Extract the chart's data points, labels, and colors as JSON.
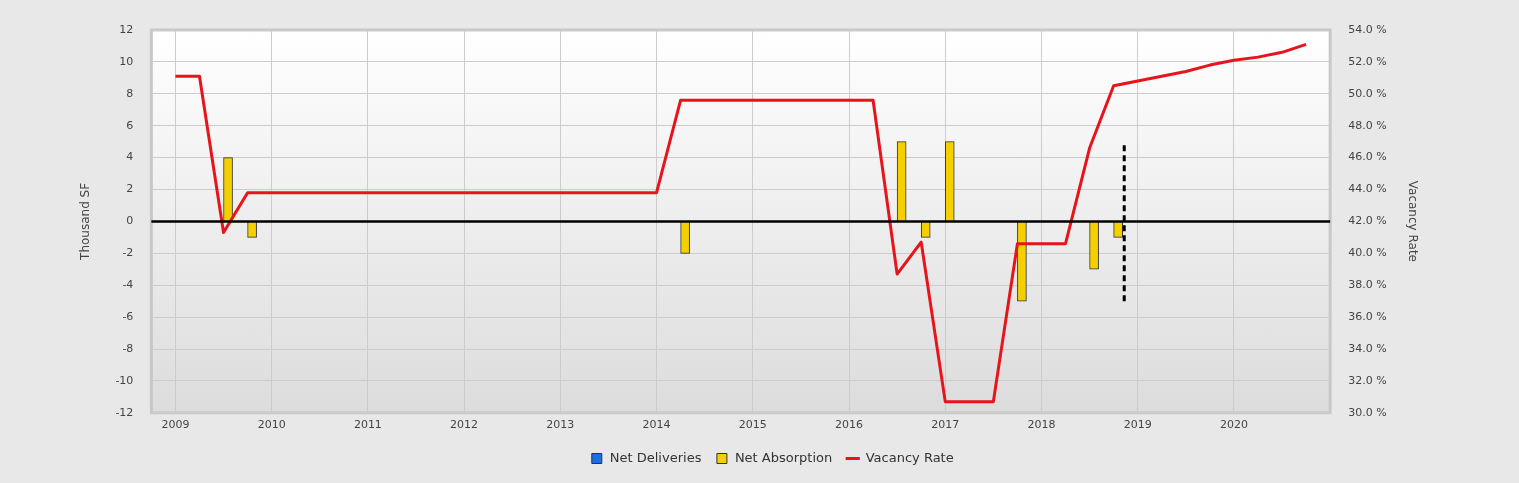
{
  "chart_data": {
    "type": "bar",
    "xlim": [
      2008.75,
      2021.0
    ],
    "xticks": [
      2009,
      2010,
      2011,
      2012,
      2013,
      2014,
      2015,
      2016,
      2017,
      2018,
      2019,
      2020
    ],
    "ylim": [
      -12,
      12
    ],
    "yticks": [
      -12,
      -10,
      -8,
      -6,
      -4,
      -2,
      0,
      2,
      4,
      6,
      8,
      10,
      12
    ],
    "y2lim": [
      30,
      54
    ],
    "y2ticks": [
      {
        "value": 30,
        "label": "30.0 %"
      },
      {
        "value": 32,
        "label": "32.0 %"
      },
      {
        "value": 34,
        "label": "34.0 %"
      },
      {
        "value": 36,
        "label": "36.0 %"
      },
      {
        "value": 38,
        "label": "38.0 %"
      },
      {
        "value": 40,
        "label": "40.0 %"
      },
      {
        "value": 42,
        "label": "42.0 %"
      },
      {
        "value": 44,
        "label": "44.0 %"
      },
      {
        "value": 46,
        "label": "46.0 %"
      },
      {
        "value": 48,
        "label": "48.0 %"
      },
      {
        "value": 50,
        "label": "50.0 %"
      },
      {
        "value": 52,
        "label": "52.0 %"
      },
      {
        "value": 54,
        "label": "54.0 %"
      }
    ],
    "ylabel": "Thousand SF",
    "y2label": "Vacancy Rate",
    "grid": true,
    "legend": "bottom",
    "marker": "none",
    "ref_lines": [
      {
        "axis": "y",
        "value": 0,
        "color": "#000000"
      }
    ],
    "series": [
      {
        "name": "Net Deliveries",
        "color": "#1a6fe6",
        "x": [
          2009.5,
          2009.75,
          2014.25,
          2016.5,
          2016.75,
          2017.0,
          2017.75,
          2018.5,
          2018.75
        ],
        "values": [
          0,
          0,
          0,
          0,
          0,
          0,
          0,
          0,
          0
        ]
      },
      {
        "name": "Net Absorption",
        "color": "#f5d000",
        "x": [
          2009.5,
          2009.75,
          2014.25,
          2016.5,
          2016.75,
          2017.0,
          2017.75,
          2018.5,
          2018.75
        ],
        "values": [
          4,
          -1,
          -2,
          5,
          -1,
          5,
          -5,
          -3,
          -1
        ]
      },
      {
        "name": "Vacancy Rate",
        "type": "line",
        "axis": "y2",
        "color": "#e8141b",
        "line_style": "solid",
        "x": [
          2009.0,
          2009.25,
          2009.5,
          2009.75,
          2014.0,
          2014.25,
          2016.25,
          2016.5,
          2016.75,
          2017.0,
          2017.5,
          2017.75,
          2018.25,
          2018.5,
          2018.75,
          2019.0,
          2019.25,
          2019.5,
          2019.75,
          2020.0,
          2020.25,
          2020.5,
          2020.75
        ],
        "values": [
          51.1,
          51.1,
          41.3,
          43.8,
          43.8,
          49.6,
          49.6,
          38.7,
          40.7,
          30.7,
          30.7,
          40.6,
          40.6,
          46.6,
          50.5,
          50.8,
          51.1,
          51.4,
          51.8,
          52.1,
          52.3,
          52.6,
          53.1
        ]
      },
      {
        "type": "line",
        "color": "#000000",
        "line_style": "dashed",
        "x": [
          2018.86,
          2018.86
        ],
        "values": [
          -5,
          5
        ]
      }
    ]
  }
}
